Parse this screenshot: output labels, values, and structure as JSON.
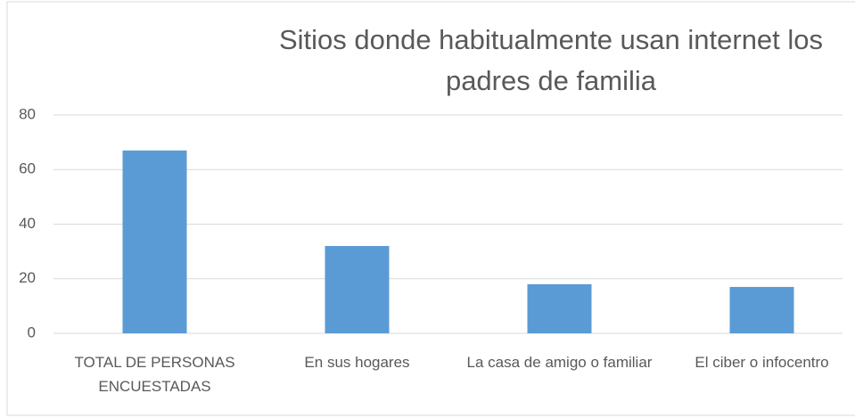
{
  "chart_data": {
    "type": "bar",
    "title": "Sitios donde habitualmente usan internet los padres de familia",
    "categories": [
      "TOTAL DE PERSONAS ENCUESTADAS",
      "En sus hogares",
      "La casa de  amigo o familiar",
      "El ciber o infocentro"
    ],
    "values": [
      67,
      32,
      18,
      17
    ],
    "color": "#5b9bd5",
    "ylim": [
      0,
      80
    ],
    "yticks": [
      0,
      20,
      40,
      60,
      80
    ],
    "grid": true
  }
}
